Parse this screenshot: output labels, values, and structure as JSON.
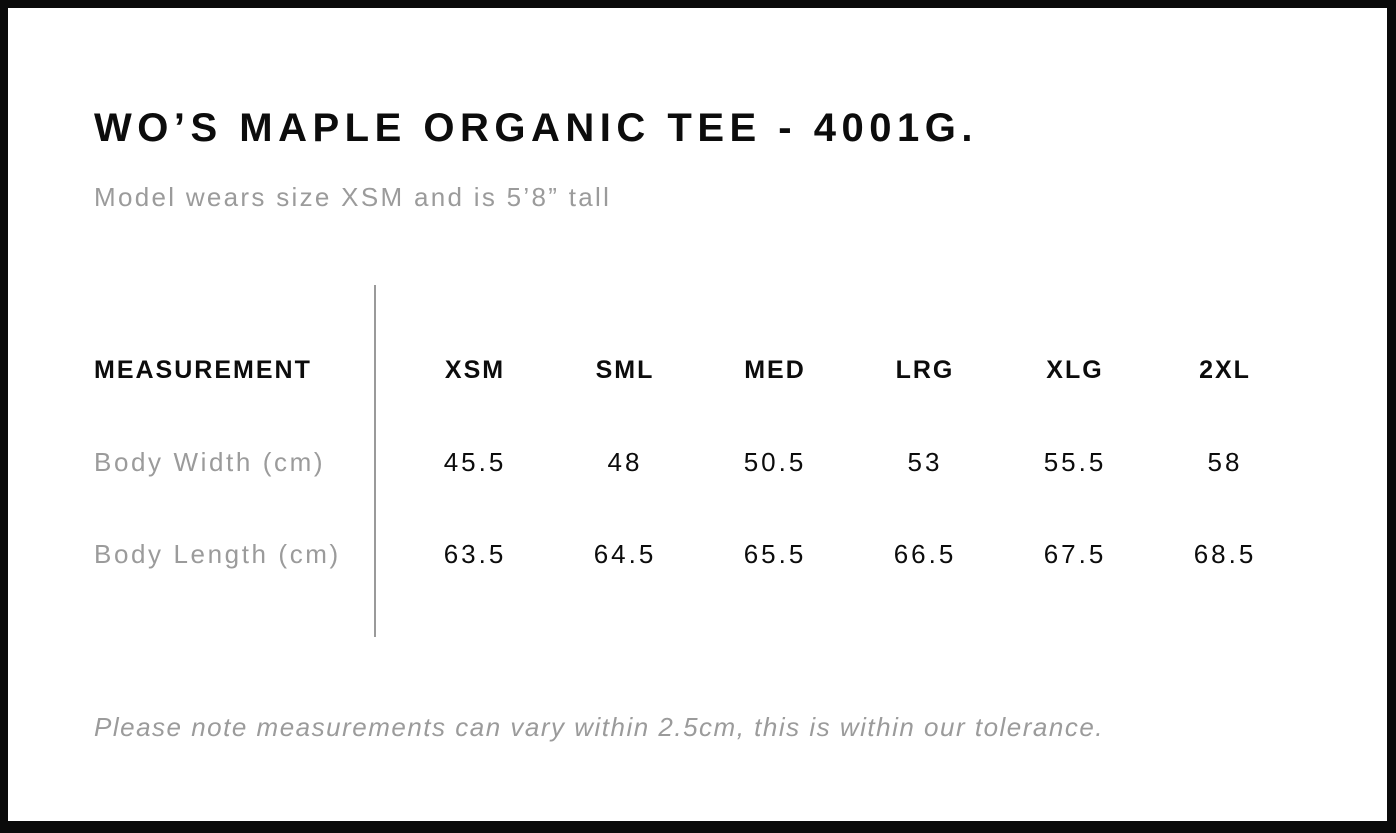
{
  "header": {
    "title": "WO’S MAPLE ORGANIC TEE - 4001G.",
    "subtitle": "Model wears size XSM and is 5’8” tall"
  },
  "size_chart": {
    "measurement_label": "MEASUREMENT",
    "sizes": [
      "XSM",
      "SML",
      "MED",
      "LRG",
      "XLG",
      "2XL"
    ],
    "rows": [
      {
        "label": "Body Width (cm)",
        "values": [
          "45.5",
          "48",
          "50.5",
          "53",
          "55.5",
          "58"
        ]
      },
      {
        "label": "Body Length (cm)",
        "values": [
          "63.5",
          "64.5",
          "65.5",
          "66.5",
          "67.5",
          "68.5"
        ]
      }
    ]
  },
  "footnote": {
    "text": "Please note measurements can vary within 2.5cm, this is within our tolerance."
  },
  "colors": {
    "text_primary": "#0c0c0c",
    "text_muted": "#9b9b9b",
    "divider": "#9a9a9a",
    "frame_border": "#0a0a0a",
    "background": "#ffffff"
  },
  "chart_data": {
    "type": "table",
    "title": "WO’S MAPLE ORGANIC TEE - 4001G.",
    "columns": [
      "MEASUREMENT",
      "XSM",
      "SML",
      "MED",
      "LRG",
      "XLG",
      "2XL"
    ],
    "rows": [
      [
        "Body Width (cm)",
        45.5,
        48,
        50.5,
        53,
        55.5,
        58
      ],
      [
        "Body Length (cm)",
        63.5,
        64.5,
        65.5,
        66.5,
        67.5,
        68.5
      ]
    ],
    "notes": "Measurements can vary within 2.5cm (tolerance)."
  }
}
